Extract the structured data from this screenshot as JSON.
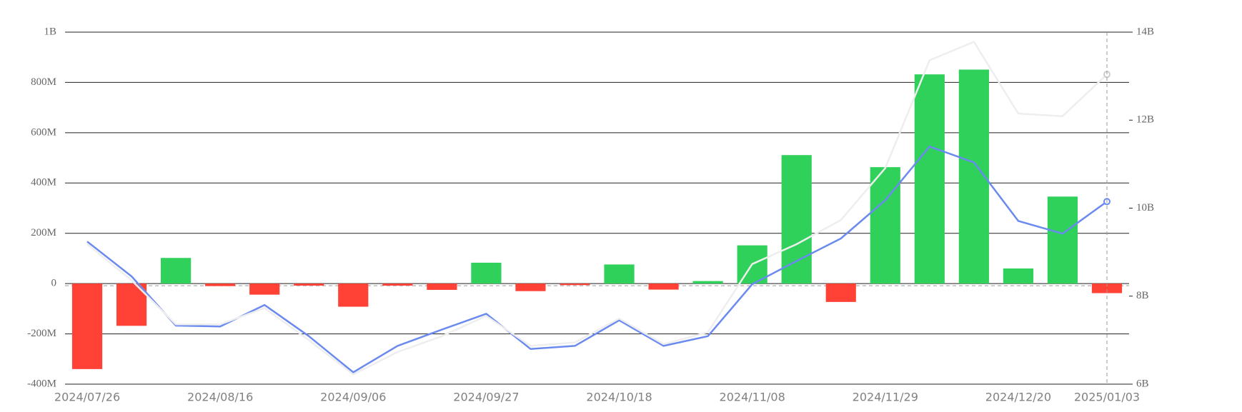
{
  "chart_data": {
    "type": "bar",
    "categories": [
      "2024/07/26",
      null,
      null,
      "2024/08/16",
      null,
      null,
      "2024/09/06",
      null,
      null,
      "2024/09/27",
      null,
      null,
      "2024/10/18",
      null,
      null,
      "2024/11/08",
      null,
      null,
      "2024/11/29",
      null,
      null,
      "2024/12/20",
      null,
      "2025/01/03"
    ],
    "series": [
      {
        "type": "bar",
        "up_color": "#2fd15a",
        "down_color": "#ff4136",
        "values": [
          -340000000,
          -168000000,
          102000000,
          -10000000,
          -44000000,
          -8000000,
          -92000000,
          -8000000,
          -25000000,
          83000000,
          -30000000,
          -6000000,
          76000000,
          -24000000,
          10000000,
          152000000,
          511000000,
          -73000000,
          463000000,
          832000000,
          851000000,
          60000000,
          346000000,
          -38000000
        ]
      },
      {
        "type": "line",
        "axis": "y2",
        "color": "#6b8af0",
        "values": [
          9240000000,
          8450000000,
          7330000000,
          7310000000,
          7800000000,
          7090000000,
          6270000000,
          6870000000,
          7240000000,
          7600000000,
          6800000000,
          6870000000,
          7450000000,
          6870000000,
          7090000000,
          8270000000,
          8800000000,
          9310000000,
          10180000000,
          11400000000,
          11040000000,
          9710000000,
          9420000000,
          10150000000
        ]
      },
      {
        "type": "line",
        "axis": "y2",
        "color": "#eeeeee",
        "values": [
          9180000000,
          8360000000,
          7360000000,
          7360000000,
          7730000000,
          7000000000,
          6220000000,
          6730000000,
          7090000000,
          7550000000,
          6870000000,
          6950000000,
          7490000000,
          6910000000,
          7180000000,
          8730000000,
          9180000000,
          9730000000,
          10910000000,
          13360000000,
          13780000000,
          12150000000,
          12090000000,
          13040000000
        ]
      }
    ],
    "ylim": [
      -400000000,
      1000000000
    ],
    "yticks": [
      {
        "value": -400000000,
        "label": "-400M"
      },
      {
        "value": -200000000,
        "label": "-200M"
      },
      {
        "value": 0,
        "label": "0"
      },
      {
        "value": 200000000,
        "label": "200M"
      },
      {
        "value": 400000000,
        "label": "400M"
      },
      {
        "value": 600000000,
        "label": "600M"
      },
      {
        "value": 800000000,
        "label": "800M"
      },
      {
        "value": 1000000000,
        "label": "1B"
      }
    ],
    "y2lim": [
      6000000000,
      14000000000
    ],
    "y2ticks": [
      {
        "value": 6000000000,
        "label": "6B"
      },
      {
        "value": 8000000000,
        "label": "8B"
      },
      {
        "value": 10000000000,
        "label": "10B"
      },
      {
        "value": 12000000000,
        "label": "12B"
      },
      {
        "value": 14000000000,
        "label": "14B"
      }
    ],
    "grid": true
  }
}
